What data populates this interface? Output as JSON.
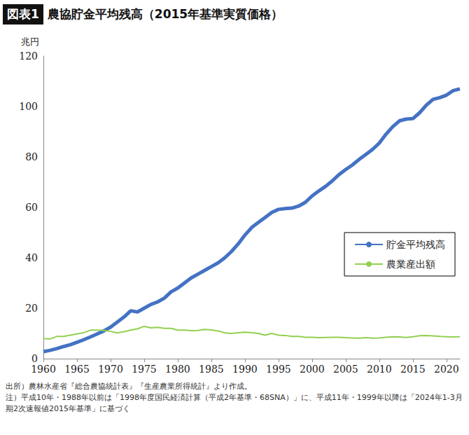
{
  "chart_data": {
    "type": "line",
    "figure_label": "図表1",
    "title": "農協貯金平均残高（2015年基準実質価格）",
    "y_label": "兆円",
    "source": "出所）農林水産省『総合農協統計表』『生産農業所得統計』より作成。",
    "note": "注）平成10年・1988年以前は「1998年度国民経済計算（平成2年基準・68SNA）」に、平成11年・1999年以降は「2024年1-3月期2次速報値2015年基準」に基づく",
    "x": [
      1960,
      1961,
      1962,
      1963,
      1964,
      1965,
      1966,
      1967,
      1968,
      1969,
      1970,
      1971,
      1972,
      1973,
      1974,
      1975,
      1976,
      1977,
      1978,
      1979,
      1980,
      1981,
      1982,
      1983,
      1984,
      1985,
      1986,
      1987,
      1988,
      1989,
      1990,
      1991,
      1992,
      1993,
      1994,
      1995,
      1996,
      1997,
      1998,
      1999,
      2000,
      2001,
      2002,
      2003,
      2004,
      2005,
      2006,
      2007,
      2008,
      2009,
      2010,
      2011,
      2012,
      2013,
      2014,
      2015,
      2016,
      2017,
      2018,
      2019,
      2020,
      2021,
      2022
    ],
    "series": [
      {
        "name": "貯金平均残高",
        "color": "#4472c4",
        "values": [
          2.8,
          3.3,
          4,
          4.8,
          5.5,
          6.5,
          7.5,
          8.6,
          9.8,
          11,
          12.5,
          14.5,
          16.5,
          19,
          18.5,
          20,
          21.5,
          22.5,
          24,
          26.5,
          28,
          30,
          32,
          33.5,
          35,
          36.5,
          38,
          40,
          42.5,
          45.5,
          49,
          52,
          54,
          56,
          58,
          59.2,
          59.5,
          59.7,
          60.5,
          62,
          64.5,
          66.5,
          68.3,
          70.5,
          73,
          75,
          76.8,
          79,
          81,
          83,
          85.5,
          89,
          92,
          94.3,
          95,
          95.2,
          97.5,
          100.5,
          102.8,
          103.5,
          104.5,
          106.3,
          107
        ]
      },
      {
        "name": "農業産出額",
        "color": "#92d050",
        "values": [
          8,
          7.8,
          8.8,
          8.8,
          9.3,
          9.8,
          10.3,
          11.3,
          11.3,
          11.2,
          10.8,
          10.2,
          10.7,
          11.3,
          11.8,
          12.8,
          12.2,
          12.4,
          12,
          12,
          11.3,
          11.3,
          11.1,
          11.2,
          11.6,
          11.4,
          11,
          10.2,
          10,
          10.3,
          10.5,
          10.3,
          10,
          9.3,
          10,
          9.3,
          9.2,
          8.8,
          8.8,
          8.5,
          8.5,
          8.3,
          8.4,
          8.5,
          8.5,
          8.3,
          8.2,
          8.1,
          8.3,
          8.1,
          8.2,
          8.5,
          8.7,
          8.6,
          8.4,
          8.7,
          9.1,
          9.2,
          9,
          8.8,
          8.7,
          8.6,
          8.7
        ]
      }
    ],
    "xlim": [
      1960,
      2022
    ],
    "xticks": [
      1960,
      1965,
      1970,
      1975,
      1980,
      1985,
      1990,
      1995,
      2000,
      2005,
      2010,
      2015,
      2020
    ],
    "ylim": [
      0,
      120
    ],
    "yticks": [
      0,
      20,
      40,
      60,
      80,
      100,
      120
    ],
    "grid": false,
    "legend": "right"
  }
}
